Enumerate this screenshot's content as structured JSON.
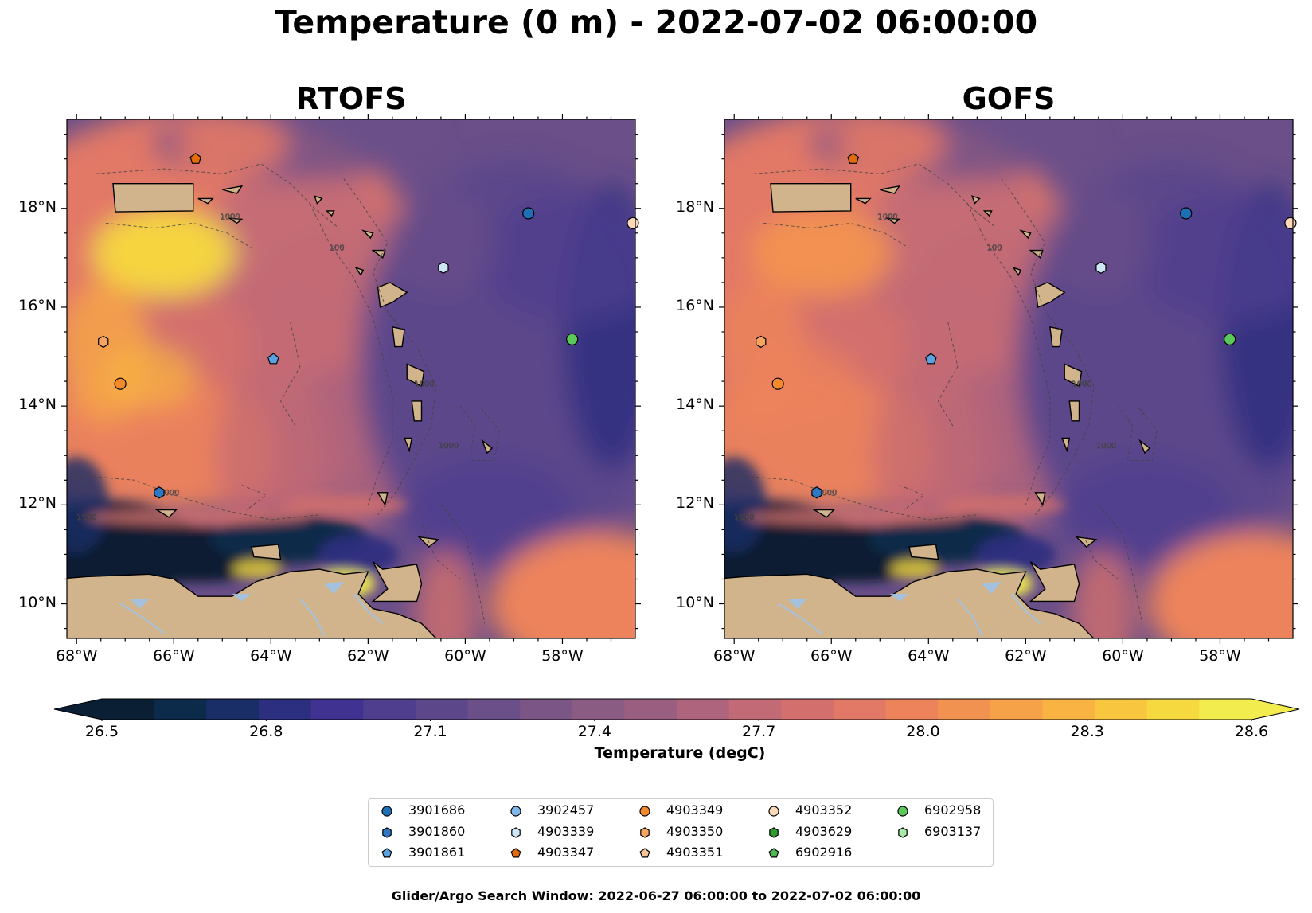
{
  "title": "Temperature (0 m) - 2022-07-02 06:00:00",
  "panels": [
    {
      "id": "left",
      "title": "RTOFS",
      "warm_scale": 1.0
    },
    {
      "id": "right",
      "title": "GOFS",
      "warm_scale": 0.85
    }
  ],
  "axes": {
    "lon_range": [
      -68.2,
      -56.5
    ],
    "lat_range": [
      9.3,
      19.8
    ],
    "x_ticks": [
      {
        "lon": -68,
        "label": "68°W"
      },
      {
        "lon": -66,
        "label": "66°W"
      },
      {
        "lon": -64,
        "label": "64°W"
      },
      {
        "lon": -62,
        "label": "62°W"
      },
      {
        "lon": -60,
        "label": "60°W"
      },
      {
        "lon": -58,
        "label": "58°W"
      }
    ],
    "y_ticks": [
      {
        "lat": 18,
        "label": "18°N"
      },
      {
        "lat": 16,
        "label": "16°N"
      },
      {
        "lat": 14,
        "label": "14°N"
      },
      {
        "lat": 12,
        "label": "12°N"
      },
      {
        "lat": 10,
        "label": "10°N"
      }
    ]
  },
  "isobath_labels": [
    "1000",
    "100",
    "1000",
    "1000",
    "1000",
    "1000"
  ],
  "colors": {
    "land": "#d2b48c",
    "water_features": "#a4c2e0",
    "colormap": [
      "#0a1f33",
      "#0c2a4a",
      "#192d66",
      "#2c2e80",
      "#403291",
      "#4f3d8e",
      "#5c478b",
      "#6a4f89",
      "#7a5586",
      "#8a5b83",
      "#9a5f80",
      "#ae647c",
      "#c26a75",
      "#d3706d",
      "#e27866",
      "#ec835b",
      "#f29250",
      "#f5a249",
      "#f8b342",
      "#f8c63f",
      "#f6d93f",
      "#f2ec4e"
    ]
  },
  "colorbar": {
    "label": "Temperature (degC)",
    "vmin": 26.5,
    "vmax": 28.6,
    "ticks": [
      "26.5",
      "26.8",
      "27.1",
      "27.4",
      "27.7",
      "28.0",
      "28.3",
      "28.6"
    ],
    "extend": "both"
  },
  "floats": [
    {
      "id": "3901686",
      "lon": -58.7,
      "lat": 17.9,
      "marker": "circle",
      "color": "#1f6fb5"
    },
    {
      "id": "3901860",
      "lon": -66.3,
      "lat": 12.25,
      "marker": "hexagon",
      "color": "#2e78c4"
    },
    {
      "id": "3901861",
      "lon": -63.95,
      "lat": 14.95,
      "marker": "pentagon",
      "color": "#5aa3e0"
    },
    {
      "id": "3902457",
      "lon": null,
      "lat": null,
      "marker": "circle",
      "color": "#7fb8e8"
    },
    {
      "id": "4903339",
      "lon": -60.45,
      "lat": 16.8,
      "marker": "hexagon",
      "color": "#cfe6f7"
    },
    {
      "id": "4903347",
      "lon": -65.55,
      "lat": 19.0,
      "marker": "pentagon",
      "color": "#e36c0a"
    },
    {
      "id": "4903349",
      "lon": -67.1,
      "lat": 14.45,
      "marker": "circle",
      "color": "#f58a2b"
    },
    {
      "id": "4903350",
      "lon": -67.45,
      "lat": 15.3,
      "marker": "hexagon",
      "color": "#f7a45e"
    },
    {
      "id": "4903351",
      "lon": null,
      "lat": null,
      "marker": "pentagon",
      "color": "#f9c596"
    },
    {
      "id": "4903352",
      "lon": -56.55,
      "lat": 17.7,
      "marker": "circle",
      "color": "#fbd9b8"
    },
    {
      "id": "4903629",
      "lon": null,
      "lat": null,
      "marker": "hexagon",
      "color": "#2e9b2e"
    },
    {
      "id": "6902916",
      "lon": null,
      "lat": null,
      "marker": "pentagon",
      "color": "#4fb84f"
    },
    {
      "id": "6902958",
      "lon": -57.8,
      "lat": 15.35,
      "marker": "circle",
      "color": "#5ac85a"
    },
    {
      "id": "6903137",
      "lon": null,
      "lat": null,
      "marker": "hexagon",
      "color": "#a6e8a6"
    }
  ],
  "footer": "Glider/Argo Search Window: 2022-06-27 06:00:00 to 2022-07-02 06:00:00"
}
